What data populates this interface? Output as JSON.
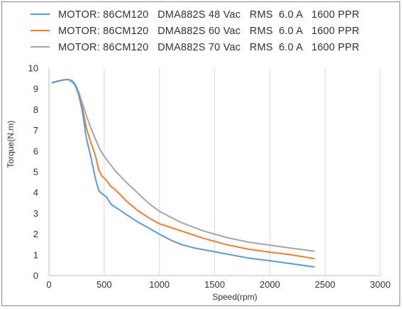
{
  "chart_data": {
    "type": "line",
    "title": "",
    "xlabel": "Speed(rpm)",
    "ylabel": "Torque(N.m)",
    "xlim": [
      0,
      3000
    ],
    "ylim": [
      0,
      10
    ],
    "xticks": [
      0,
      500,
      1000,
      1500,
      2000,
      2500,
      3000
    ],
    "yticks": [
      0,
      1,
      2,
      3,
      4,
      5,
      6,
      7,
      8,
      9,
      10
    ],
    "grid": "vertical",
    "legend_position": "top",
    "series": [
      {
        "name": "MOTOR: 86CM120   DMA882S 48 Vac   RMS  6.0 A   1600 PPR",
        "color": "#5b9bd5",
        "x": [
          30,
          100,
          150,
          180,
          210,
          240,
          270,
          300,
          340,
          380,
          420,
          450,
          480,
          520,
          560,
          600,
          700,
          800,
          900,
          1000,
          1100,
          1200,
          1300,
          1500,
          1800,
          2000,
          2200,
          2400
        ],
        "y": [
          9.3,
          9.4,
          9.45,
          9.45,
          9.35,
          9.15,
          8.7,
          8.0,
          6.6,
          5.7,
          4.7,
          4.1,
          3.95,
          3.8,
          3.45,
          3.3,
          2.95,
          2.6,
          2.3,
          2.0,
          1.72,
          1.5,
          1.35,
          1.15,
          0.85,
          0.72,
          0.57,
          0.42
        ]
      },
      {
        "name": "MOTOR: 86CM120   DMA882S 60 Vac   RMS  6.0 A   1600 PPR",
        "color": "#ed7d31",
        "x": [
          30,
          100,
          150,
          180,
          210,
          240,
          270,
          300,
          340,
          380,
          420,
          450,
          480,
          520,
          560,
          600,
          700,
          800,
          900,
          1000,
          1200,
          1400,
          1600,
          1800,
          2000,
          2200,
          2400
        ],
        "y": [
          9.3,
          9.4,
          9.45,
          9.45,
          9.35,
          9.15,
          8.75,
          8.15,
          7.1,
          6.4,
          5.8,
          5.1,
          4.8,
          4.6,
          4.3,
          4.15,
          3.6,
          3.15,
          2.8,
          2.5,
          2.15,
          1.8,
          1.5,
          1.28,
          1.13,
          1.0,
          0.82
        ]
      },
      {
        "name": "MOTOR: 86CM120   DMA882S 70 Vac   RMS  6.0 A   1600 PPR",
        "color": "#a5a5a5",
        "x": [
          30,
          100,
          150,
          180,
          210,
          240,
          270,
          300,
          340,
          380,
          420,
          460,
          500,
          550,
          600,
          700,
          800,
          900,
          1000,
          1200,
          1400,
          1600,
          1800,
          2000,
          2200,
          2400
        ],
        "y": [
          9.3,
          9.4,
          9.45,
          9.45,
          9.4,
          9.2,
          8.85,
          8.35,
          7.7,
          7.1,
          6.6,
          6.1,
          5.75,
          5.4,
          5.05,
          4.5,
          4.0,
          3.5,
          3.1,
          2.55,
          2.15,
          1.85,
          1.62,
          1.47,
          1.32,
          1.18
        ]
      }
    ]
  }
}
